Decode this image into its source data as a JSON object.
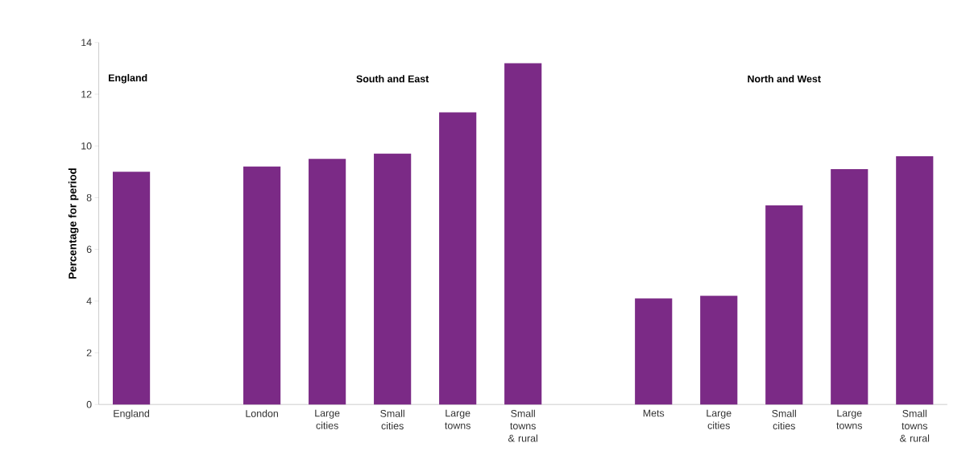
{
  "chart_data": {
    "type": "bar",
    "ylabel": "Percentage for period",
    "categories": [
      "England",
      null,
      "London",
      "Large cities",
      "Small cities",
      "Large towns",
      "Small towns & rural",
      null,
      "Mets",
      "Large cities",
      "Small cities",
      "Large towns",
      "Small towns & rural"
    ],
    "values": [
      9.0,
      null,
      9.2,
      9.5,
      9.7,
      11.3,
      13.2,
      null,
      4.1,
      4.2,
      7.7,
      9.1,
      9.6
    ],
    "color": "#7b2a86",
    "ylim": [
      0,
      14
    ],
    "yticks": [
      0,
      2,
      4,
      6,
      8,
      10,
      12,
      14
    ],
    "grid": false,
    "annotations": [
      "England",
      "South and East",
      "North and West"
    ]
  }
}
